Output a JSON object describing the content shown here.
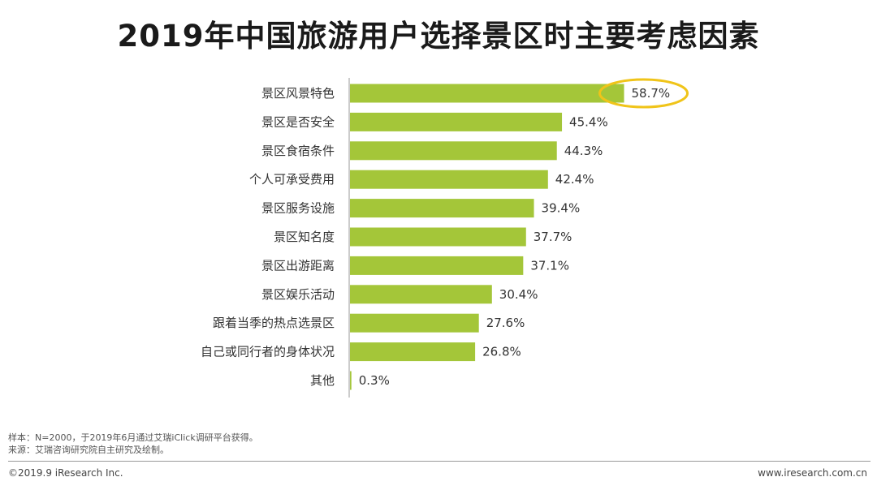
{
  "colors": {
    "bar": "#a4c639",
    "highlight": "#f0c419",
    "axis": "#999999"
  },
  "chart_data": {
    "type": "bar",
    "orientation": "horizontal",
    "title": "2019年中国旅游用户选择景区时主要考虑因素",
    "categories": [
      "景区风景特色",
      "景区是否安全",
      "景区食宿条件",
      "个人可承受费用",
      "景区服务设施",
      "景区知名度",
      "景区出游距离",
      "景区娱乐活动",
      "跟着当季的热点选景区",
      "自己或同行者的身体状况",
      "其他"
    ],
    "values": [
      58.7,
      45.4,
      44.3,
      42.4,
      39.4,
      37.7,
      37.1,
      30.4,
      27.6,
      26.8,
      0.3
    ],
    "value_labels": [
      "58.7%",
      "45.4%",
      "44.3%",
      "42.4%",
      "39.4%",
      "37.7%",
      "37.1%",
      "30.4%",
      "27.6%",
      "26.8%",
      "0.3%"
    ],
    "xlim": [
      0,
      100
    ],
    "highlighted_category": "景区风景特色",
    "grid": false
  },
  "notes": {
    "sample": "样本：N=2000，于2019年6月通过艾瑞iClick调研平台获得。",
    "source": "来源：艾瑞咨询研究院自主研究及绘制。"
  },
  "footer": {
    "copyright": "©2019.9 iResearch Inc.",
    "website": "www.iresearch.com.cn"
  }
}
